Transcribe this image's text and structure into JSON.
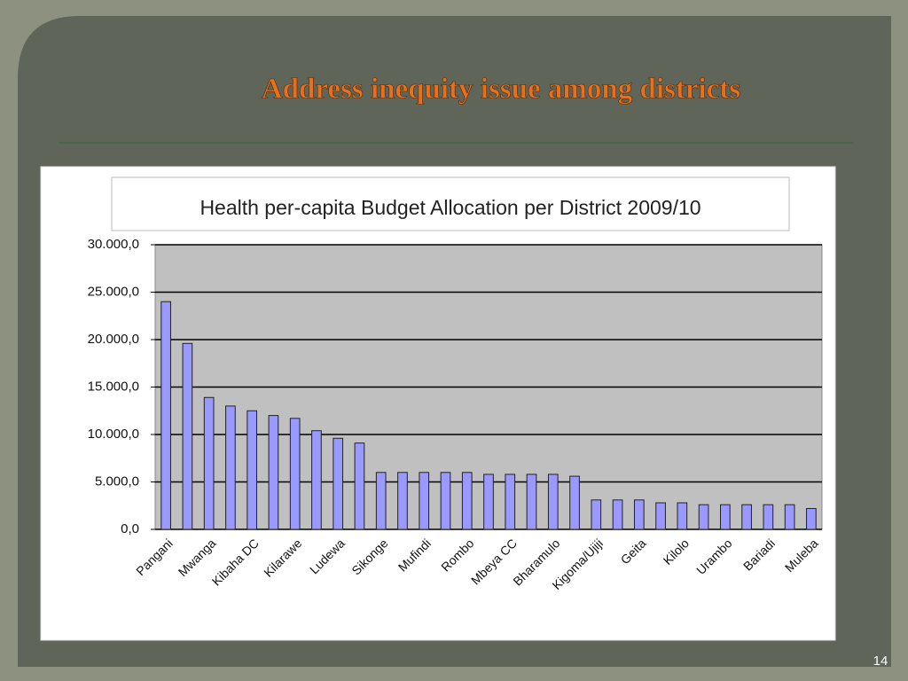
{
  "slide": {
    "title": "Address inequity issue among districts",
    "page_number": "14"
  },
  "chart_data": {
    "type": "bar",
    "title": "Health per-capita Budget Allocation per District  2009/10",
    "categories": [
      "Pangani",
      null,
      "Mwanga",
      null,
      "Kibaha DC",
      null,
      "Kilarawe",
      null,
      "Ludewa",
      null,
      "Sikonge",
      null,
      "Mufindi",
      null,
      "Rombo",
      null,
      "Mbeya CC",
      null,
      "Bharamulo",
      null,
      "Kigoma/Ujiji",
      null,
      "Geita",
      null,
      "Kilolo",
      null,
      "Urambo",
      null,
      "Bariadi",
      null,
      "Muleba"
    ],
    "values": [
      24000,
      19600,
      13900,
      13000,
      12500,
      12000,
      11700,
      10400,
      9600,
      9100,
      6000,
      6000,
      6000,
      6000,
      6000,
      5800,
      5800,
      5800,
      5800,
      5600,
      3100,
      3100,
      3100,
      2800,
      2800,
      2600,
      2600,
      2600,
      2600,
      2600,
      2200
    ],
    "color": "#9999ff",
    "ylim": [
      0,
      30000
    ],
    "yticks": [
      {
        "value": 0,
        "label": "0,0"
      },
      {
        "value": 5000,
        "label": "5.000,0"
      },
      {
        "value": 10000,
        "label": "10.000,0"
      },
      {
        "value": 15000,
        "label": "15.000,0"
      },
      {
        "value": 20000,
        "label": "20.000,0"
      },
      {
        "value": 25000,
        "label": "25.000,0"
      },
      {
        "value": 30000,
        "label": "30.000,0"
      }
    ],
    "grid": true
  }
}
